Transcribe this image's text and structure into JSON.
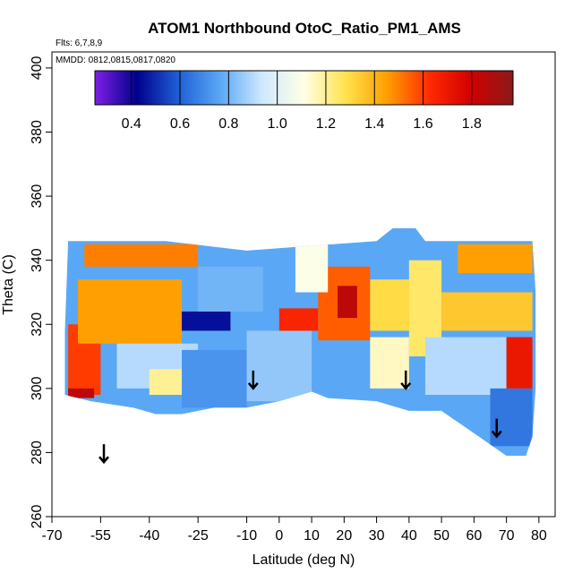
{
  "chart_data": {
    "type": "heatmap",
    "title": "ATOM1 Northbound OtoC_Ratio_PM1_AMS",
    "subtitle_flights": "Flts: 6,7,8,9",
    "subtitle_dates": "MMDD: 0812,0815,0817,0820",
    "xlabel": "Latitude (deg N)",
    "ylabel": "Theta (C)",
    "xlim": [
      -70,
      85
    ],
    "ylim": [
      260,
      405
    ],
    "xticks": [
      -70,
      -55,
      -40,
      -25,
      -10,
      0,
      10,
      20,
      30,
      40,
      50,
      60,
      70,
      80
    ],
    "yticks": [
      260,
      280,
      300,
      320,
      340,
      360,
      380,
      400
    ],
    "colorbar": {
      "range": [
        0.25,
        1.97
      ],
      "ticks": [
        0.4,
        0.6,
        0.8,
        1.0,
        1.2,
        1.4,
        1.6,
        1.8
      ],
      "tick_labels": [
        "0.4",
        "0.6",
        "0.8",
        "1.0",
        "1.2",
        "1.4",
        "1.6",
        "1.8"
      ],
      "colors": [
        "#7f1fe6",
        "#00008b",
        "#1f5fd6",
        "#5aa8f5",
        "#cfe8ff",
        "#ffffe6",
        "#ffe24d",
        "#ff9d00",
        "#ff2a00",
        "#d10000",
        "#8b1a1a"
      ]
    },
    "arrows": [
      {
        "lat": -54,
        "theta": 277
      },
      {
        "lat": -8,
        "theta": 300
      },
      {
        "lat": 39,
        "theta": 300
      },
      {
        "lat": 67,
        "theta": 285
      }
    ],
    "regions": [
      {
        "lat": [
          -65,
          -55
        ],
        "theta": [
          298,
          320
        ],
        "value": 1.6
      },
      {
        "lat": [
          -62,
          -30
        ],
        "theta": [
          314,
          334
        ],
        "value": 1.45
      },
      {
        "lat": [
          -60,
          -25
        ],
        "theta": [
          338,
          345
        ],
        "value": 1.5
      },
      {
        "lat": [
          -65,
          -57
        ],
        "theta": [
          297,
          300
        ],
        "value": 1.85
      },
      {
        "lat": [
          -50,
          -25
        ],
        "theta": [
          300,
          314
        ],
        "value": 0.9
      },
      {
        "lat": [
          -40,
          -30
        ],
        "theta": [
          298,
          306
        ],
        "value": 1.2
      },
      {
        "lat": [
          -30,
          -10
        ],
        "theta": [
          294,
          312
        ],
        "value": 0.72
      },
      {
        "lat": [
          -30,
          -15
        ],
        "theta": [
          318,
          324
        ],
        "value": 0.45
      },
      {
        "lat": [
          -25,
          -5
        ],
        "theta": [
          324,
          338
        ],
        "value": 0.8
      },
      {
        "lat": [
          -10,
          10
        ],
        "theta": [
          296,
          318
        ],
        "value": 0.85
      },
      {
        "lat": [
          0,
          12
        ],
        "theta": [
          318,
          325
        ],
        "value": 1.65
      },
      {
        "lat": [
          12,
          28
        ],
        "theta": [
          315,
          338
        ],
        "value": 1.55
      },
      {
        "lat": [
          18,
          24
        ],
        "theta": [
          322,
          332
        ],
        "value": 1.85
      },
      {
        "lat": [
          5,
          15
        ],
        "theta": [
          330,
          345
        ],
        "value": 1.1
      },
      {
        "lat": [
          28,
          40
        ],
        "theta": [
          300,
          316
        ],
        "value": 1.15
      },
      {
        "lat": [
          28,
          45
        ],
        "theta": [
          318,
          334
        ],
        "value": 1.3
      },
      {
        "lat": [
          40,
          50
        ],
        "theta": [
          310,
          340
        ],
        "value": 1.25
      },
      {
        "lat": [
          45,
          70
        ],
        "theta": [
          298,
          316
        ],
        "value": 0.9
      },
      {
        "lat": [
          50,
          78
        ],
        "theta": [
          318,
          330
        ],
        "value": 1.35
      },
      {
        "lat": [
          55,
          78
        ],
        "theta": [
          336,
          345
        ],
        "value": 1.45
      },
      {
        "lat": [
          65,
          78
        ],
        "theta": [
          282,
          300
        ],
        "value": 0.65
      },
      {
        "lat": [
          70,
          78
        ],
        "theta": [
          300,
          316
        ],
        "value": 1.7
      }
    ]
  }
}
